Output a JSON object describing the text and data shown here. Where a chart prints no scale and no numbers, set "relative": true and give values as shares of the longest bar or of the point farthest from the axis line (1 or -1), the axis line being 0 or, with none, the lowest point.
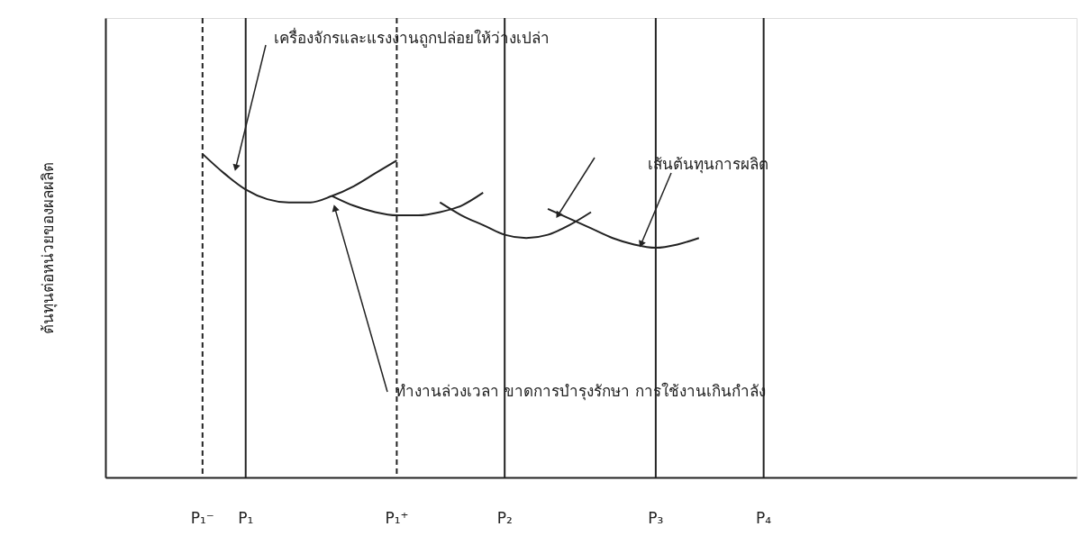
{
  "chart_data": {
    "type": "line",
    "relative": true,
    "ylabel": "ต้นทุนต่อหน่วยของผลผลิต",
    "grid": false,
    "marker": "none",
    "line_style": "solid",
    "categories": [
      null,
      null,
      null,
      null,
      "P₁⁻",
      null,
      "P₁",
      null,
      null,
      null,
      null,
      null,
      null,
      "P₁⁺",
      null,
      null,
      null,
      null,
      "P₂",
      null,
      null,
      null,
      null,
      null,
      null,
      "P₃",
      null,
      null,
      null,
      null,
      "P₄",
      null,
      null,
      null,
      null,
      null,
      null,
      null,
      null,
      null,
      null,
      null,
      null,
      null,
      null
    ],
    "series": [
      {
        "color": "#222222",
        "values": [
          null,
          null,
          null,
          null,
          1.0,
          0.94,
          0.89,
          0.86,
          0.85,
          0.85,
          0.87,
          0.9,
          0.94,
          0.98,
          null,
          null,
          null,
          null,
          null,
          null,
          null,
          null,
          null,
          null,
          null,
          null,
          null,
          null,
          null,
          null,
          null,
          null,
          null,
          null,
          null,
          null,
          null,
          null,
          null,
          null,
          null,
          null,
          null,
          null,
          null
        ]
      },
      {
        "color": "#222222",
        "values": [
          null,
          null,
          null,
          null,
          null,
          null,
          null,
          null,
          null,
          null,
          0.87,
          0.84,
          0.82,
          0.81,
          0.81,
          0.82,
          0.84,
          0.88,
          null,
          null,
          null,
          null,
          null,
          null,
          null,
          null,
          null,
          null,
          null,
          null,
          null,
          null,
          null,
          null,
          null,
          null,
          null,
          null,
          null,
          null,
          null,
          null,
          null,
          null,
          null
        ]
      },
      {
        "color": "#222222",
        "values": [
          null,
          null,
          null,
          null,
          null,
          null,
          null,
          null,
          null,
          null,
          null,
          null,
          null,
          null,
          null,
          0.85,
          0.81,
          0.78,
          0.75,
          0.74,
          0.75,
          0.78,
          0.82,
          null,
          null,
          null,
          null,
          null,
          null,
          null,
          null,
          null,
          null,
          null,
          null,
          null,
          null,
          null,
          null,
          null,
          null,
          null,
          null,
          null,
          null
        ]
      },
      {
        "color": "#222222",
        "values": [
          null,
          null,
          null,
          null,
          null,
          null,
          null,
          null,
          null,
          null,
          null,
          null,
          null,
          null,
          null,
          null,
          null,
          null,
          null,
          null,
          0.83,
          0.8,
          0.77,
          0.74,
          0.72,
          0.71,
          0.72,
          0.74,
          null,
          null,
          null,
          null,
          null,
          null,
          null,
          null,
          null,
          null,
          null,
          null,
          null,
          null,
          null,
          null,
          null
        ]
      }
    ],
    "ref_lines": [
      {
        "axis": "x",
        "value": "P₁⁻",
        "line_style": "dashed",
        "color": "#222222"
      },
      {
        "axis": "x",
        "value": "P₁",
        "line_style": "solid",
        "color": "#222222"
      },
      {
        "axis": "x",
        "value": "P₁⁺",
        "line_style": "dashed",
        "color": "#222222"
      },
      {
        "axis": "x",
        "value": "P₂",
        "line_style": "solid",
        "color": "#222222"
      },
      {
        "axis": "x",
        "value": "P₃",
        "line_style": "solid",
        "color": "#222222"
      },
      {
        "axis": "x",
        "value": "P₄",
        "line_style": "solid",
        "color": "#222222"
      }
    ],
    "annotations": [
      "เครื่องจักรและแรงงานถูกปล่อยให้ว่างเปล่า",
      "เส้นต้นทุนการผลิต",
      "ทำงานล่วงเวลา ขาดการบำรุงรักษา การใช้งานเกินกำลัง"
    ]
  }
}
